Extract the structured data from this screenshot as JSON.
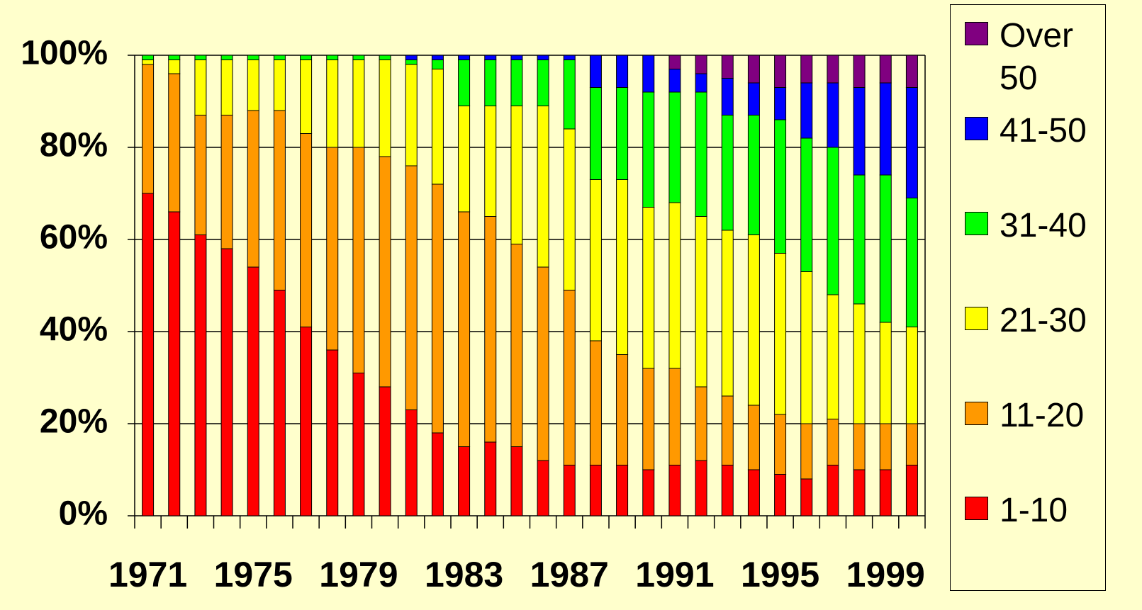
{
  "chart_data": {
    "type": "stacked-bar",
    "categories": [
      "1971",
      null,
      null,
      null,
      "1975",
      null,
      null,
      null,
      "1979",
      null,
      null,
      null,
      "1983",
      null,
      null,
      null,
      "1987",
      null,
      null,
      null,
      "1991",
      null,
      null,
      null,
      "1995",
      null,
      null,
      null,
      "1999",
      null
    ],
    "series": [
      {
        "name": "1-10",
        "color": "#ff0000",
        "values": [
          70,
          66,
          61,
          58,
          54,
          49,
          41,
          36,
          31,
          28,
          23,
          18,
          15,
          16,
          15,
          12,
          11,
          11,
          11,
          10,
          11,
          12,
          11,
          10,
          9,
          8,
          11,
          10,
          10,
          11
        ]
      },
      {
        "name": "11-20",
        "color": "#ff9900",
        "values": [
          28,
          30,
          26,
          29,
          34,
          39,
          42,
          44,
          49,
          50,
          53,
          54,
          51,
          49,
          44,
          42,
          38,
          27,
          24,
          22,
          21,
          16,
          15,
          14,
          13,
          12,
          10,
          10,
          10,
          9
        ]
      },
      {
        "name": "21-30",
        "color": "#ffff00",
        "values": [
          1,
          3,
          12,
          12,
          11,
          11,
          16,
          19,
          19,
          21,
          22,
          25,
          23,
          24,
          30,
          35,
          35,
          35,
          38,
          35,
          36,
          37,
          36,
          37,
          35,
          33,
          27,
          26,
          22,
          21
        ]
      },
      {
        "name": "31-40",
        "color": "#00ff00",
        "values": [
          1,
          1,
          1,
          1,
          1,
          1,
          1,
          1,
          1,
          1,
          1,
          2,
          10,
          10,
          10,
          10,
          15,
          20,
          20,
          25,
          24,
          27,
          25,
          26,
          29,
          29,
          32,
          28,
          32,
          28
        ]
      },
      {
        "name": "41-50",
        "color": "#0000ff",
        "values": [
          0,
          0,
          0,
          0,
          0,
          0,
          0,
          0,
          0,
          0,
          1,
          1,
          1,
          1,
          1,
          1,
          1,
          7,
          7,
          8,
          5,
          4,
          8,
          7,
          7,
          12,
          14,
          19,
          20,
          24
        ]
      },
      {
        "name": "Over 50",
        "color": "#800080",
        "values": [
          0,
          0,
          0,
          0,
          0,
          0,
          0,
          0,
          0,
          0,
          0,
          0,
          0,
          0,
          0,
          0,
          0,
          0,
          0,
          0,
          3,
          4,
          5,
          6,
          7,
          6,
          6,
          7,
          6,
          7
        ]
      }
    ],
    "ylim": [
      0,
      100
    ],
    "yticks": [
      {
        "value": 0,
        "label": "0%"
      },
      {
        "value": 20,
        "label": "20%"
      },
      {
        "value": 40,
        "label": "40%"
      },
      {
        "value": 60,
        "label": "60%"
      },
      {
        "value": 80,
        "label": "80%"
      },
      {
        "value": 100,
        "label": "100%"
      }
    ],
    "grid": true
  }
}
